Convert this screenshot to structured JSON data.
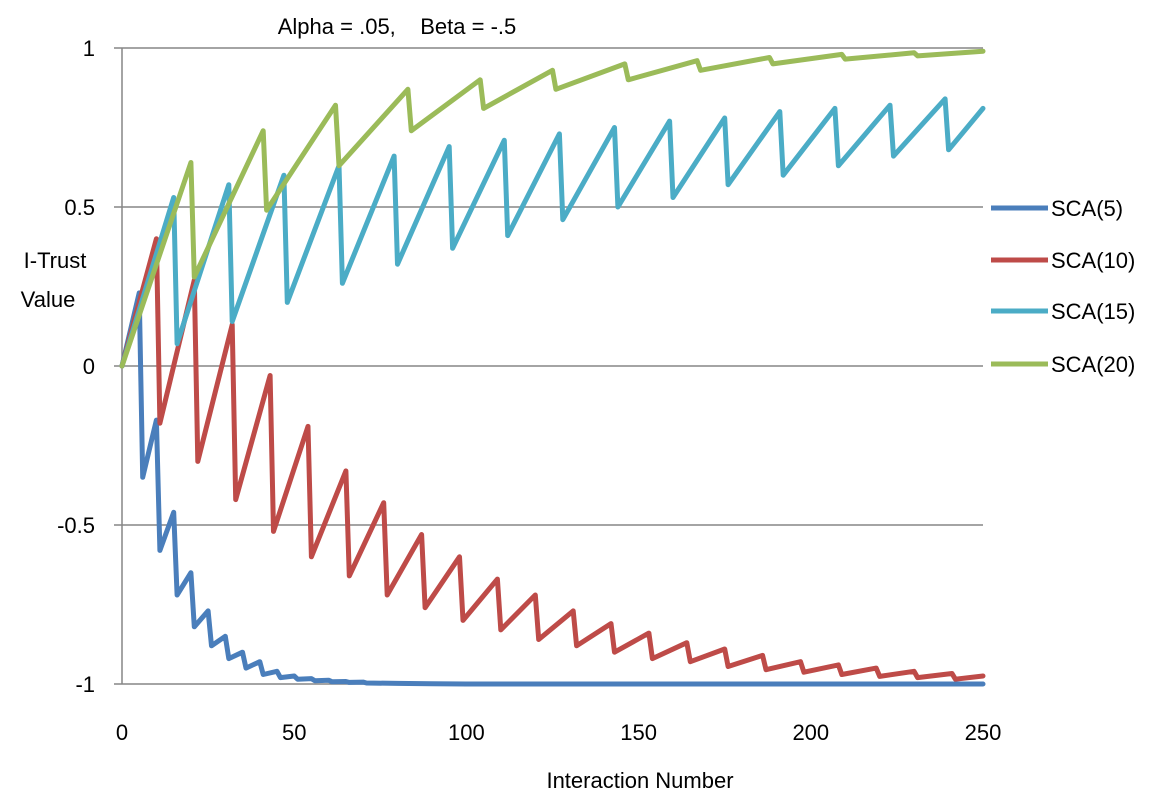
{
  "chart_data": {
    "type": "line",
    "title": "Alpha = .05,    Beta = -.5",
    "xlabel": "Interaction Number",
    "ylabel_lines": [
      "I-Trust",
      "Value"
    ],
    "xlim": [
      0,
      250
    ],
    "ylim": [
      -1,
      1
    ],
    "x_ticks": [
      0,
      50,
      100,
      150,
      200,
      250
    ],
    "x_tick_labels": [
      "0",
      "50",
      "100",
      "150",
      "200",
      "250"
    ],
    "y_ticks": [
      1,
      0.5,
      0,
      -0.5,
      -1
    ],
    "y_tick_labels": [
      "1",
      "0.5",
      "0",
      "-0.5",
      "-1"
    ],
    "grid": "horizontal",
    "legend_position": "right",
    "series": [
      {
        "name": "SCA(5)",
        "color": "#4A7EBB",
        "x": [
          0,
          5,
          6,
          10,
          11,
          15,
          16,
          20,
          21,
          25,
          26,
          30,
          31,
          35,
          36,
          40,
          41,
          45,
          46,
          50,
          51,
          55,
          56,
          60,
          61,
          65,
          66,
          70,
          71,
          80,
          90,
          100,
          120,
          150,
          200,
          250
        ],
        "y": [
          0,
          0.23,
          -0.35,
          -0.17,
          -0.58,
          -0.46,
          -0.72,
          -0.65,
          -0.82,
          -0.77,
          -0.88,
          -0.85,
          -0.92,
          -0.9,
          -0.95,
          -0.93,
          -0.97,
          -0.96,
          -0.98,
          -0.975,
          -0.985,
          -0.983,
          -0.99,
          -0.988,
          -0.993,
          -0.992,
          -0.995,
          -0.994,
          -0.997,
          -0.998,
          -0.999,
          -1,
          -1,
          -1,
          -1,
          -1
        ]
      },
      {
        "name": "SCA(10)",
        "color": "#BE4B48",
        "x": [
          0,
          10,
          11,
          21,
          22,
          32,
          33,
          43,
          44,
          54,
          55,
          65,
          66,
          76,
          77,
          87,
          88,
          98,
          99,
          109,
          110,
          120,
          121,
          131,
          132,
          142,
          143,
          153,
          154,
          164,
          165,
          175,
          176,
          186,
          187,
          197,
          198,
          208,
          209,
          219,
          220,
          230,
          231,
          241,
          242,
          250
        ],
        "y": [
          0,
          0.4,
          -0.18,
          0.27,
          -0.3,
          0.13,
          -0.42,
          -0.03,
          -0.52,
          -0.19,
          -0.6,
          -0.33,
          -0.66,
          -0.43,
          -0.72,
          -0.53,
          -0.76,
          -0.6,
          -0.8,
          -0.67,
          -0.83,
          -0.72,
          -0.86,
          -0.77,
          -0.88,
          -0.81,
          -0.9,
          -0.84,
          -0.92,
          -0.87,
          -0.93,
          -0.89,
          -0.945,
          -0.91,
          -0.955,
          -0.93,
          -0.963,
          -0.94,
          -0.97,
          -0.95,
          -0.976,
          -0.96,
          -0.98,
          -0.967,
          -0.985,
          -0.975
        ]
      },
      {
        "name": "SCA(15)",
        "color": "#4BACC6",
        "x": [
          0,
          15,
          16,
          31,
          32,
          47,
          48,
          63,
          64,
          79,
          80,
          95,
          96,
          111,
          112,
          127,
          128,
          143,
          144,
          159,
          160,
          175,
          176,
          191,
          192,
          207,
          208,
          223,
          224,
          239,
          240,
          250
        ],
        "y": [
          0,
          0.53,
          0.07,
          0.57,
          0.14,
          0.6,
          0.2,
          0.63,
          0.26,
          0.66,
          0.32,
          0.69,
          0.37,
          0.71,
          0.41,
          0.73,
          0.46,
          0.75,
          0.5,
          0.77,
          0.53,
          0.78,
          0.57,
          0.8,
          0.6,
          0.81,
          0.63,
          0.82,
          0.66,
          0.84,
          0.68,
          0.81
        ]
      },
      {
        "name": "SCA(20)",
        "color": "#9BBB59",
        "x": [
          0,
          20,
          21,
          41,
          42,
          62,
          63,
          83,
          84,
          104,
          105,
          125,
          126,
          146,
          147,
          167,
          168,
          188,
          189,
          209,
          210,
          230,
          231,
          250
        ],
        "y": [
          0,
          0.64,
          0.28,
          0.74,
          0.49,
          0.82,
          0.63,
          0.87,
          0.74,
          0.9,
          0.81,
          0.93,
          0.87,
          0.95,
          0.9,
          0.96,
          0.93,
          0.97,
          0.95,
          0.98,
          0.965,
          0.985,
          0.975,
          0.99
        ]
      }
    ]
  }
}
